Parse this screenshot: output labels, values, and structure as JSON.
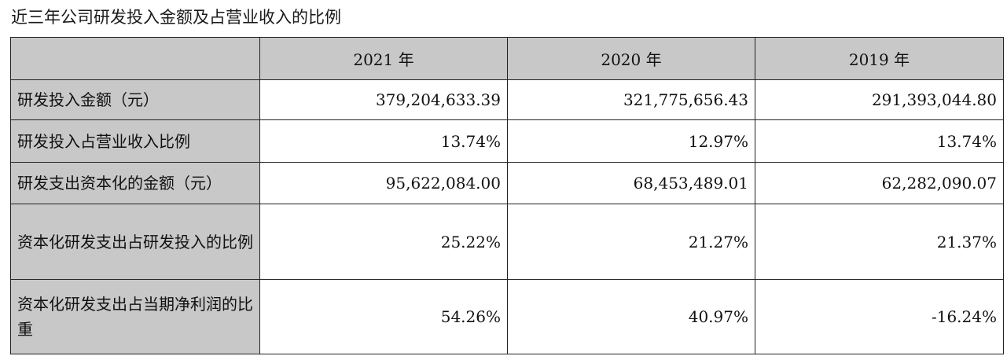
{
  "title": "近三年公司研发投入金额及占营业收入的比例",
  "table": {
    "columns": [
      "2021 年",
      "2020 年",
      "2019 年"
    ],
    "rows": [
      {
        "label": "研发投入金额（元）",
        "values": [
          "379,204,633.39",
          "321,775,656.43",
          "291,393,044.80"
        ]
      },
      {
        "label": "研发投入占营业收入比例",
        "values": [
          "13.74%",
          "12.97%",
          "13.74%"
        ]
      },
      {
        "label": "研发支出资本化的金额（元）",
        "values": [
          "95,622,084.00",
          "68,453,489.01",
          "62,282,090.07"
        ]
      },
      {
        "label": "资本化研发支出占研发投入的比例",
        "values": [
          "25.22%",
          "21.27%",
          "21.37%"
        ]
      },
      {
        "label": "资本化研发支出占当期净利润的比重",
        "values": [
          "54.26%",
          "40.97%",
          "-16.24%"
        ]
      }
    ]
  }
}
